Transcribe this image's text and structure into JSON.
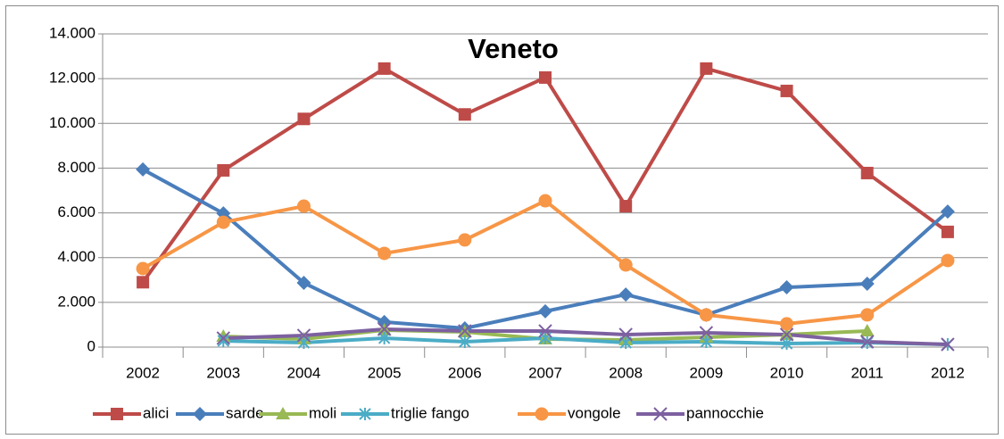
{
  "chart_data": {
    "type": "line",
    "title": "Veneto",
    "categories": [
      "2002",
      "2003",
      "2004",
      "2005",
      "2006",
      "2007",
      "2008",
      "2009",
      "2010",
      "2011",
      "2012"
    ],
    "series": [
      {
        "name": "alici",
        "color": "#be4b48",
        "marker": "square",
        "values": [
          2900,
          7900,
          10200,
          12450,
          10400,
          12050,
          6300,
          12450,
          11450,
          7780,
          5150
        ]
      },
      {
        "name": "sarde",
        "color": "#4a7ebb",
        "marker": "diamond",
        "values": [
          7940,
          5980,
          2870,
          1120,
          840,
          1600,
          2350,
          1440,
          2670,
          2830,
          6060
        ]
      },
      {
        "name": "moli",
        "color": "#98b954",
        "marker": "triangle",
        "values": [
          null,
          480,
          360,
          760,
          680,
          360,
          320,
          440,
          560,
          720,
          null
        ]
      },
      {
        "name": "triglie fango",
        "color": "#4bacc6",
        "marker": "asterisk",
        "values": [
          null,
          280,
          200,
          400,
          240,
          400,
          200,
          240,
          160,
          200,
          120
        ]
      },
      {
        "name": "vongole",
        "color": "#f79646",
        "marker": "circle",
        "values": [
          3510,
          5580,
          6300,
          4190,
          4790,
          6540,
          3670,
          1440,
          1040,
          1440,
          3870
        ]
      },
      {
        "name": "pannocchie",
        "color": "#7d60a0",
        "marker": "x",
        "values": [
          null,
          400,
          520,
          800,
          720,
          720,
          560,
          640,
          560,
          240,
          120
        ]
      }
    ],
    "ylim": [
      0,
      14000
    ],
    "yticks": [
      0,
      {
        "value": 2000,
        "label": "2.000"
      },
      {
        "value": 4000,
        "label": "4.000"
      },
      {
        "value": 6000,
        "label": "6.000"
      },
      {
        "value": 8000,
        "label": "8.000"
      },
      {
        "value": 10000,
        "label": "10.000"
      },
      {
        "value": 12000,
        "label": "12.000"
      },
      {
        "value": 14000,
        "label": "14.000"
      }
    ],
    "grid": true,
    "legend": "bottom"
  }
}
